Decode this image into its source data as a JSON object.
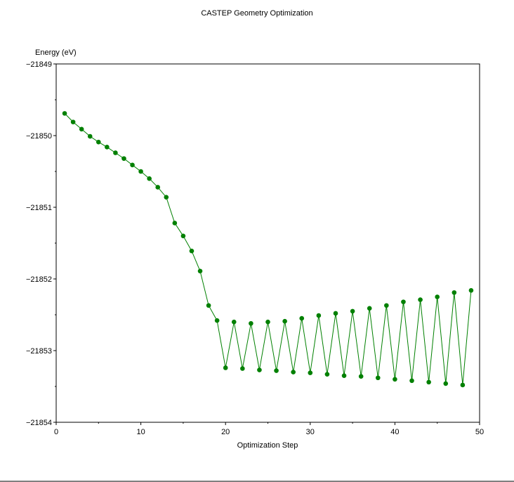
{
  "chart_data": {
    "type": "line",
    "title": "CASTEP Geometry Optimization",
    "xlabel": "Optimization Step",
    "ylabel": "Energy (eV)",
    "xlim": [
      0,
      50
    ],
    "ylim": [
      -21854,
      -21849
    ],
    "x_ticks": [
      0,
      10,
      20,
      30,
      40,
      50
    ],
    "y_ticks": [
      -21849,
      -21850,
      -21851,
      -21852,
      -21853,
      -21854
    ],
    "grid": false,
    "legend": "none",
    "series": [
      {
        "color": "#008000",
        "x": [
          1,
          2,
          3,
          4,
          5,
          6,
          7,
          8,
          9,
          10,
          11,
          12,
          13,
          14,
          15,
          16,
          17,
          18,
          19,
          20,
          21,
          22,
          23,
          24,
          25,
          26,
          27,
          28,
          29,
          30,
          31,
          32,
          33,
          34,
          35,
          36,
          37,
          38,
          39,
          40,
          41,
          42,
          43,
          44,
          45,
          46,
          47,
          48,
          49
        ],
        "y": [
          -21849.69,
          -21849.81,
          -21849.91,
          -21850.01,
          -21850.09,
          -21850.16,
          -21850.24,
          -21850.32,
          -21850.41,
          -21850.5,
          -21850.6,
          -21850.72,
          -21850.86,
          -21851.22,
          -21851.4,
          -21851.61,
          -21851.89,
          -21852.37,
          -21852.58,
          -21853.24,
          -21852.6,
          -21853.25,
          -21852.62,
          -21853.27,
          -21852.6,
          -21853.28,
          -21852.59,
          -21853.3,
          -21852.55,
          -21853.31,
          -21852.51,
          -21853.33,
          -21852.48,
          -21853.35,
          -21852.45,
          -21853.36,
          -21852.41,
          -21853.38,
          -21852.37,
          -21853.4,
          -21852.32,
          -21853.42,
          -21852.29,
          -21853.44,
          -21852.25,
          -21853.46,
          -21852.19,
          -21853.48,
          -21852.16
        ]
      }
    ]
  }
}
